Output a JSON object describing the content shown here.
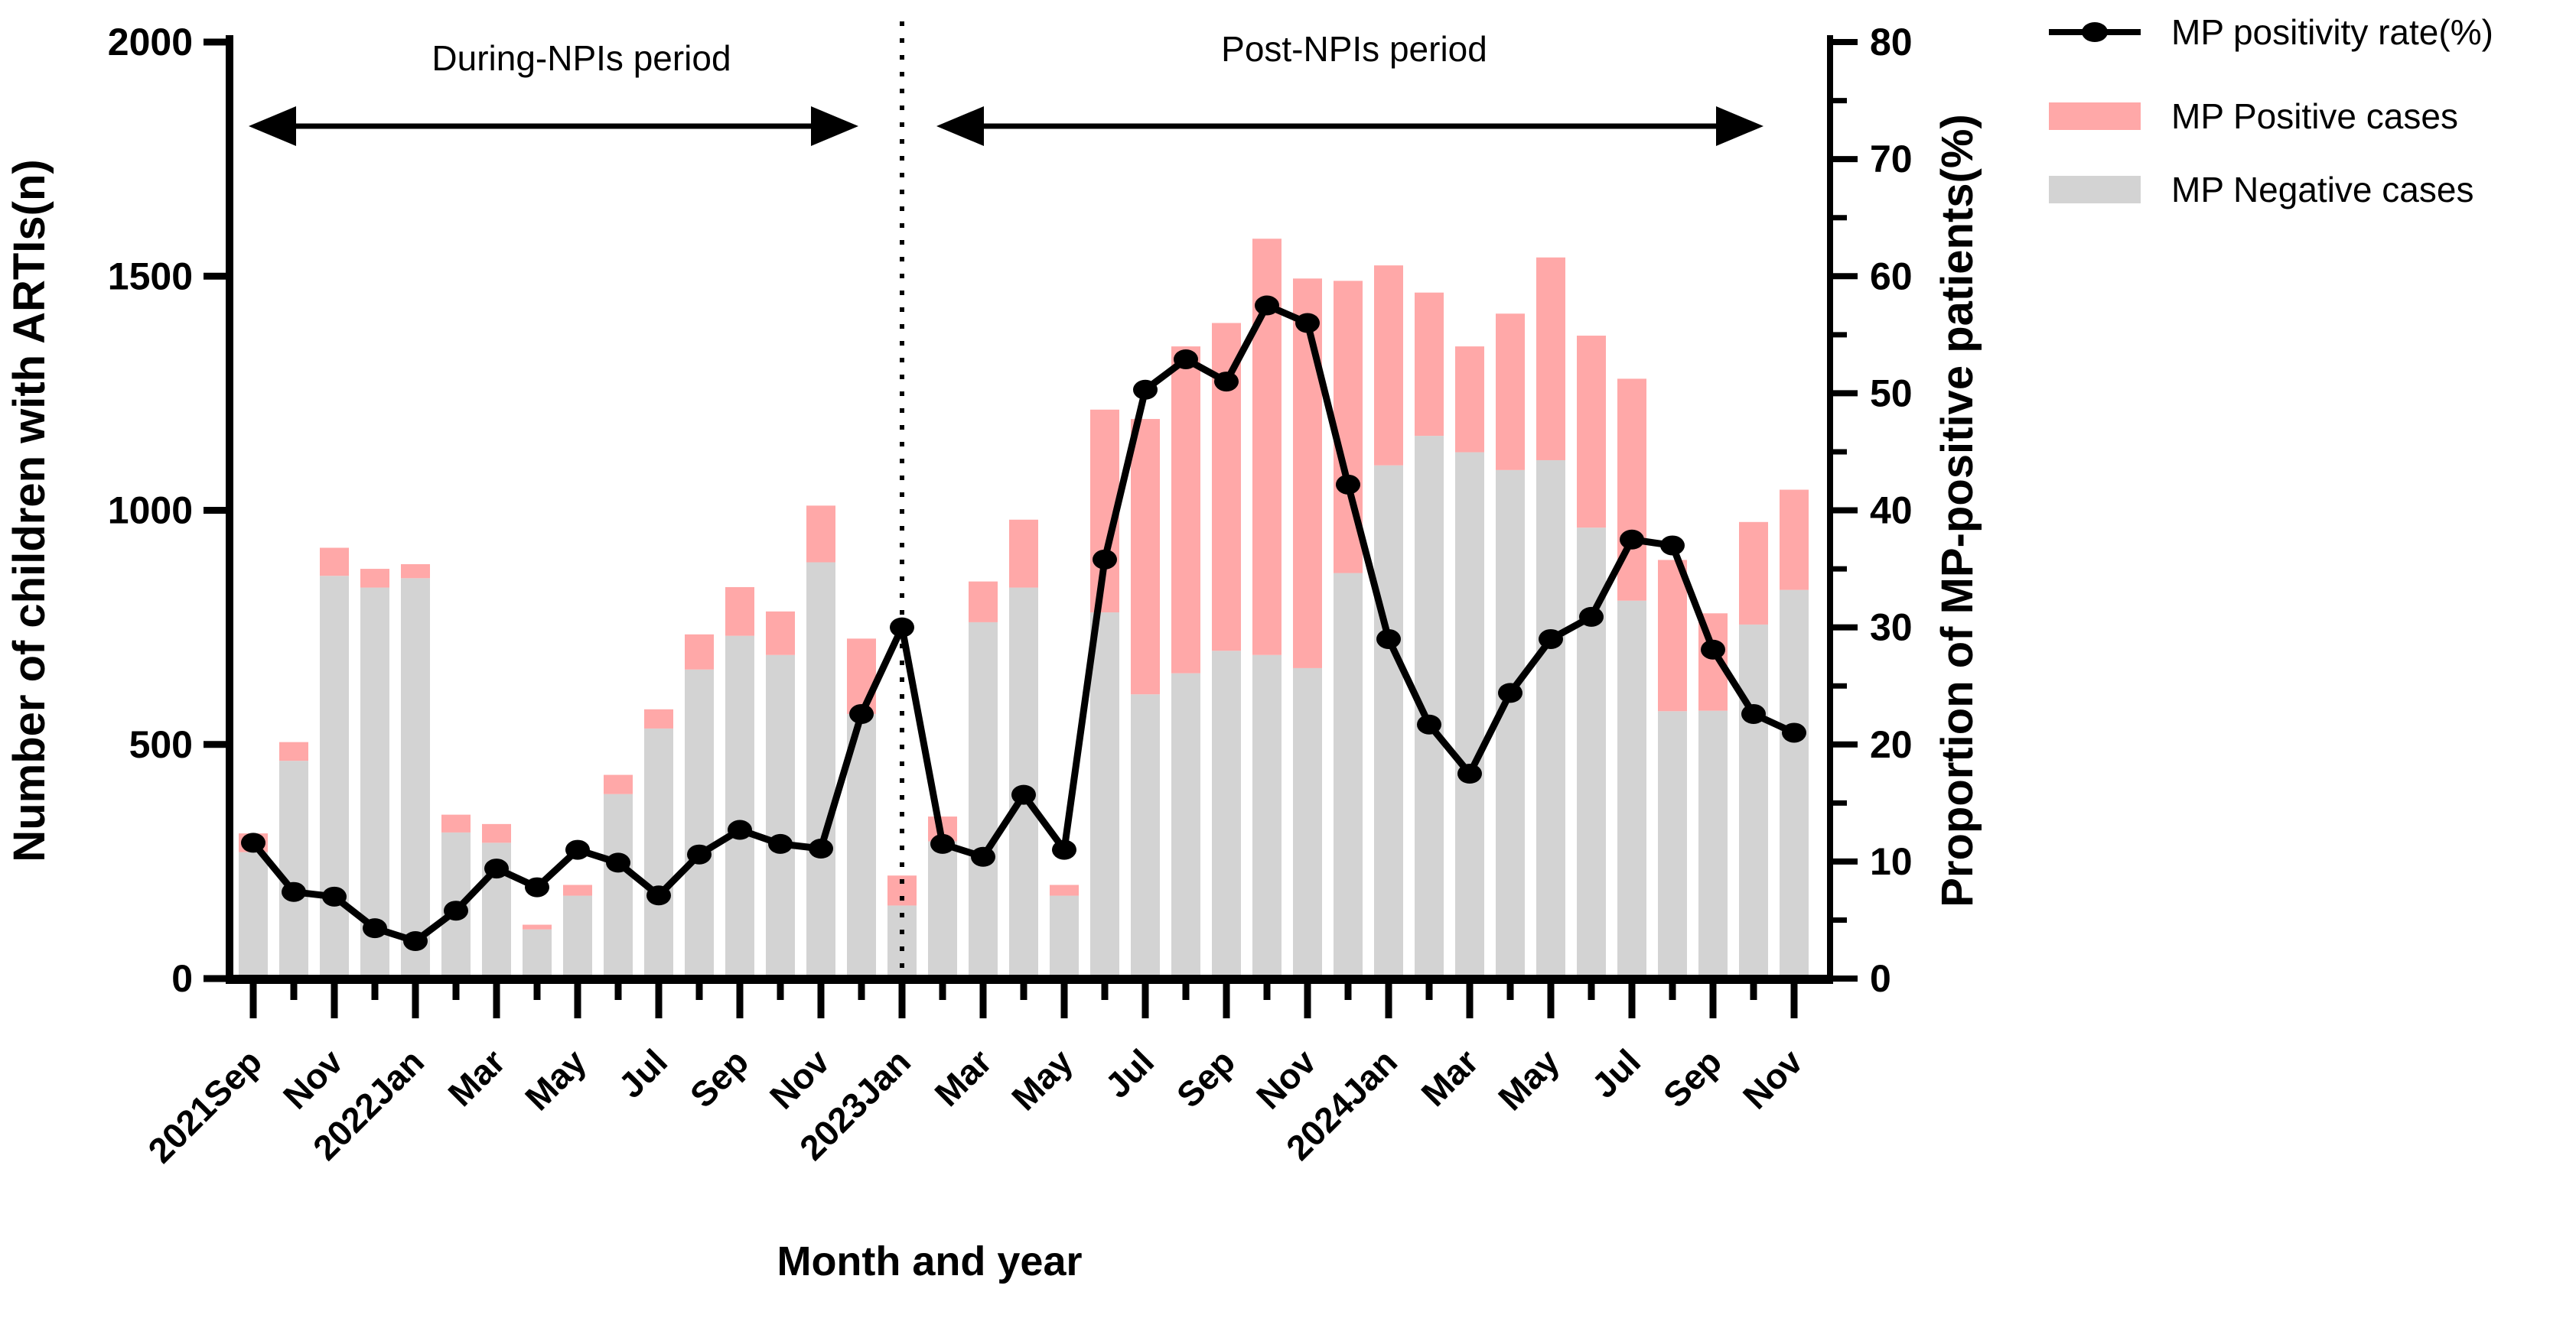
{
  "chart_data": {
    "type": "bar",
    "subtype": "stacked-bar-with-line-overlay",
    "title": "",
    "xlabel": "Month and year",
    "ylabel_left": "Number of children with ARTIs(n)",
    "ylabel_right": "Proportion of MP-positive patients(%)",
    "ylim_left": [
      0,
      2000
    ],
    "ylim_right": [
      0,
      80
    ],
    "yticks_left": [
      0,
      500,
      1000,
      1500,
      2000
    ],
    "yticks_right_major": [
      0,
      10,
      20,
      30,
      40,
      50,
      60,
      70,
      80
    ],
    "yticks_right_minor_step": 5,
    "grid": false,
    "legend_position": "top-right",
    "categories": [
      "2021Sep",
      "2021Oct",
      "2021Nov",
      "2021Dec",
      "2022Jan",
      "2022Feb",
      "2022Mar",
      "2022Apr",
      "2022May",
      "2022Jun",
      "2022Jul",
      "2022Aug",
      "2022Sep",
      "2022Oct",
      "2022Nov",
      "2022Dec",
      "2023Jan",
      "2023Feb",
      "2023Mar",
      "2023Apr",
      "2023May",
      "2023Jun",
      "2023Jul",
      "2023Aug",
      "2023Sep",
      "2023Oct",
      "2023Nov",
      "2023Dec",
      "2024Jan",
      "2024Feb",
      "2024Mar",
      "2024Apr",
      "2024May",
      "2024Jun",
      "2024Jul",
      "2024Aug",
      "2024Sep",
      "2024Oct",
      "2024Nov"
    ],
    "x_tick_labels": [
      "2021Sep",
      "",
      "Nov",
      "",
      "2022Jan",
      "",
      "Mar",
      "",
      "May",
      "",
      "Jul",
      "",
      "Sep",
      "",
      "Nov",
      "",
      "2023Jan",
      "",
      "Mar",
      "",
      "May",
      "",
      "Jul",
      "",
      "Sep",
      "",
      "Nov",
      "",
      "2024Jan",
      "",
      "Mar",
      "",
      "May",
      "",
      "Jul",
      "",
      "Sep",
      "",
      "Nov"
    ],
    "series": [
      {
        "name": "MP Negative cases",
        "type": "bar",
        "stack_order": 1,
        "color": "#d3d3d3",
        "values": [
          270,
          465,
          860,
          835,
          855,
          312,
          290,
          105,
          177,
          394,
          534,
          660,
          732,
          691,
          889,
          565,
          156,
          293,
          761,
          835,
          177,
          782,
          607,
          652,
          700,
          691,
          663,
          866,
          1096,
          1159,
          1124,
          1086,
          1107,
          963,
          807,
          571,
          572,
          756,
          830
        ]
      },
      {
        "name": "MP Positive cases",
        "type": "bar",
        "stack_order": 2,
        "color": "#ffa8a8",
        "values": [
          40,
          40,
          60,
          40,
          30,
          38,
          40,
          10,
          23,
          41,
          41,
          75,
          104,
          93,
          121,
          161,
          64,
          53,
          87,
          145,
          23,
          433,
          588,
          698,
          700,
          889,
          832,
          624,
          427,
          306,
          226,
          334,
          433,
          410,
          474,
          323,
          208,
          219,
          214
        ]
      },
      {
        "name": "MP positivity rate(%)",
        "type": "line",
        "axis": "right",
        "color": "#000000",
        "marker": "filled-ellipse",
        "values": [
          11.6,
          7.4,
          7.0,
          4.3,
          3.2,
          5.8,
          9.4,
          7.8,
          11.0,
          9.9,
          7.1,
          10.6,
          12.7,
          11.5,
          11.1,
          22.6,
          30.0,
          11.5,
          10.4,
          15.7,
          11.0,
          35.8,
          50.3,
          52.9,
          51.0,
          57.5,
          56.0,
          42.2,
          29.0,
          21.7,
          17.5,
          24.4,
          29.0,
          30.9,
          37.5,
          37.0,
          28.1,
          22.6,
          21.0
        ]
      }
    ],
    "annotations": {
      "during_label": "During-NPIs period",
      "post_label": "Post-NPIs period",
      "divider_style": "dotted-vertical-line",
      "divider_at_category": "2023Jan",
      "during_arrow_span": [
        "2021Sep",
        "2022Dec"
      ],
      "post_arrow_span": [
        "2023Jan",
        "2024Nov"
      ]
    }
  },
  "legend": {
    "items": [
      {
        "label": "MP positivity rate(%)",
        "swatch": "line-marker",
        "color": "#000000"
      },
      {
        "label": "MP Positive cases",
        "swatch": "rect",
        "color": "#ffa8a8"
      },
      {
        "label": "MP Negative cases",
        "swatch": "rect",
        "color": "#d3d3d3"
      }
    ]
  },
  "colors": {
    "positive": "#ffa8a8",
    "negative": "#d3d3d3",
    "line": "#000000",
    "axis": "#000000",
    "background": "#ffffff"
  }
}
